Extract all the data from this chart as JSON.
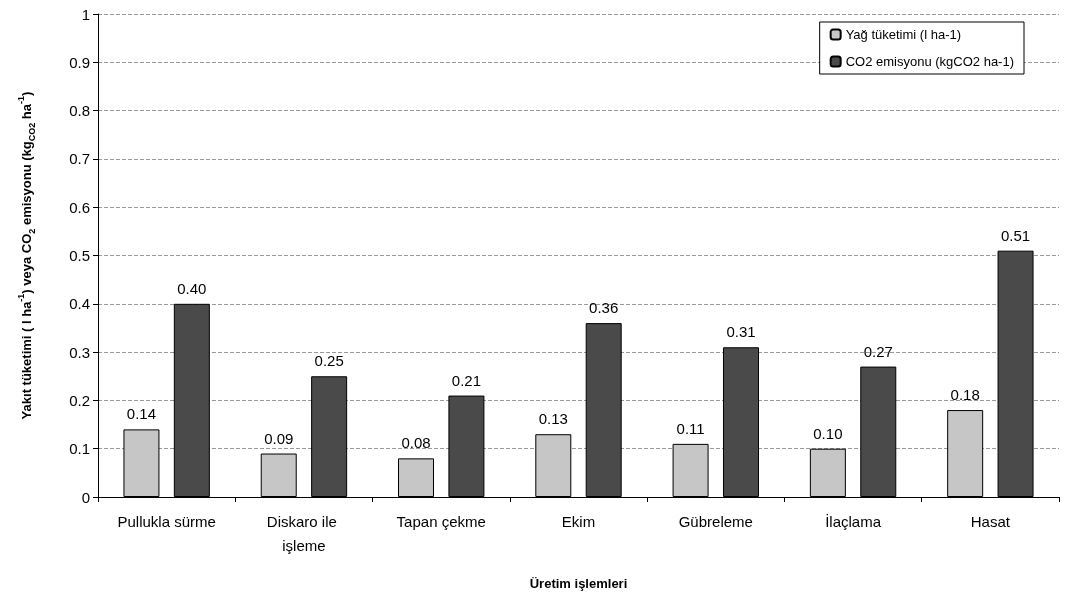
{
  "chart_data": {
    "type": "bar",
    "xlabel": "Üretim işlemleri",
    "ylabel": "Yakıt tüketimi ( l ha$^{-1}$) veya CO$_{2}$ emisyonu (kg$_{CO2}$ ha$^{-1}$)",
    "categories": [
      "Pullukla sürme",
      "Diskaro ile işleme",
      "Tapan çekme",
      "Ekim",
      "Gübreleme",
      "İlaçlama",
      "Hasat"
    ],
    "series": [
      {
        "name": "Yağ tüketimi (l ha-1)",
        "color": "#c6c6c6",
        "values": [
          0.14,
          0.09,
          0.08,
          0.13,
          0.11,
          0.1,
          0.18
        ],
        "value_labels": [
          "0.14",
          "0.09",
          "0.08",
          "0.13",
          "0.11",
          "0.10",
          "0.18"
        ]
      },
      {
        "name": "CO2 emisyonu (kgCO2 ha-1)",
        "color": "#4a4a4a",
        "values": [
          0.4,
          0.25,
          0.21,
          0.36,
          0.31,
          0.27,
          0.51
        ],
        "value_labels": [
          "0.40",
          "0.25",
          "0.21",
          "0.36",
          "0.31",
          "0.27",
          "0.51"
        ]
      }
    ],
    "ylim": [
      0,
      1
    ],
    "yticks": [
      0,
      0.1,
      0.2,
      0.3,
      0.4,
      0.5,
      0.6,
      0.7,
      0.8,
      0.9,
      1
    ],
    "grid": "y",
    "legend": "top right"
  }
}
